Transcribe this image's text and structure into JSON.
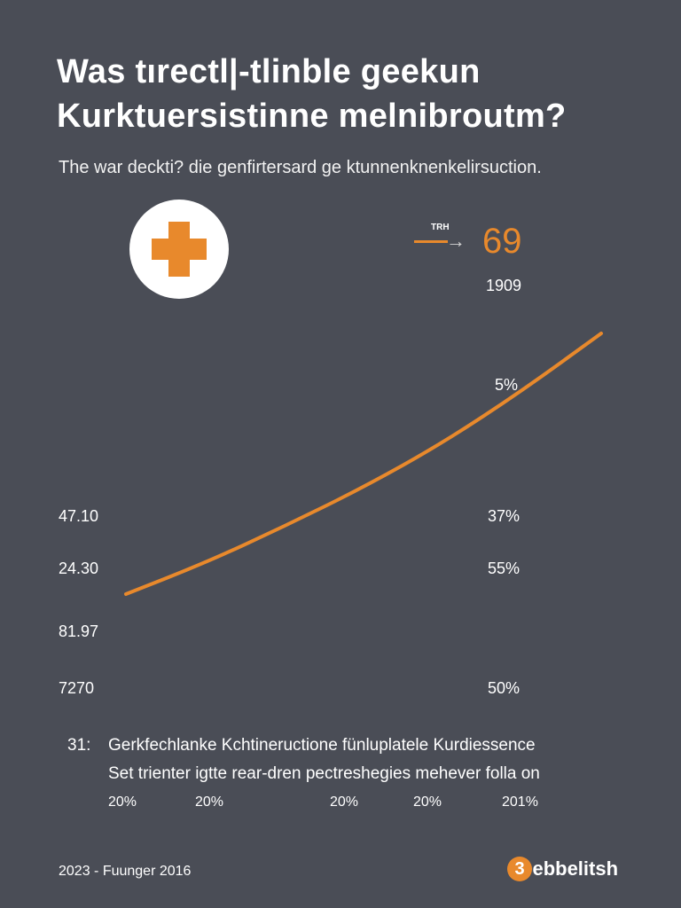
{
  "header": {
    "title_line1": "Was tırectl|-tlinble geekun",
    "title_line2": "Kurktuersistinne melnibroutm?",
    "subtitle": "The war deckti? die genfirtersard ge ktunnenknenkelirsuction."
  },
  "callout": {
    "label": "TRH",
    "value": "69",
    "year": "1909",
    "arrow_icon": "right-arrow-icon"
  },
  "badge_icon": "plus-icon",
  "chart_data": {
    "type": "line",
    "title": "",
    "xlabel": "",
    "ylabel": "",
    "y_labels_left": [
      "47.10",
      "24.30",
      "81.97",
      "7270"
    ],
    "y_labels_right": [
      "5%",
      "37%",
      "55%",
      "50%"
    ],
    "series": [
      {
        "values": [
          0,
          0.12,
          0.26,
          0.41,
          0.58,
          0.78,
          1.0
        ]
      }
    ],
    "color": "#e8892c"
  },
  "footer": {
    "number": "31:",
    "line1": "Gerkfechlanke Kchtineructione fünluplatele Kurdiessence",
    "line2": "Set trienter igtte rear-dren pectreshegies mehever folla on",
    "percents": [
      "20%",
      "20%",
      "20%",
      "20%",
      "201%"
    ],
    "date": "2023 - Fuunger 2016",
    "logo_badge": "3",
    "logo_text": "ebbelitsh"
  },
  "colors": {
    "background": "#4a4d56",
    "accent": "#e8892c"
  }
}
